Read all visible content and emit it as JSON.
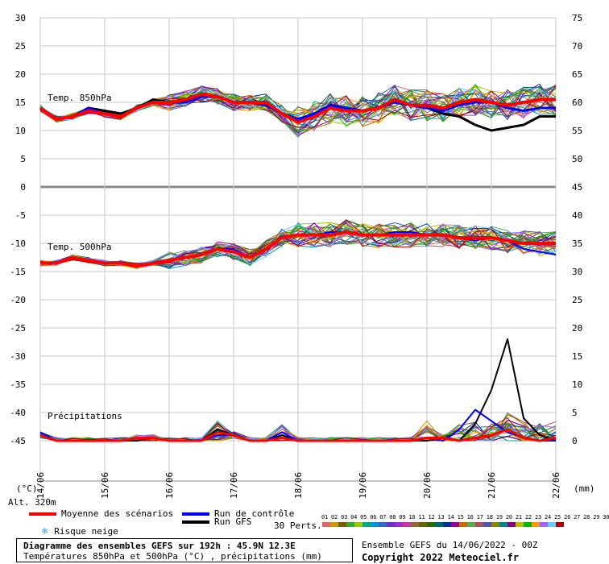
{
  "chart_data": {
    "type": "line",
    "x_dates": [
      "15/06",
      "16/06",
      "17/06",
      "18/06",
      "19/06",
      "20/06",
      "21/06",
      "22/06"
    ],
    "x_start": "14/06",
    "left_axis_ticks": [
      30,
      25,
      20,
      15,
      10,
      5,
      0,
      -5,
      -10,
      -15,
      -20,
      -25,
      -30,
      -35,
      -40,
      -45
    ],
    "right_axis_ticks": [
      75,
      70,
      65,
      60,
      55,
      50,
      45,
      40,
      35,
      30,
      25,
      20,
      15,
      10,
      5,
      0
    ],
    "left_unit": "(°C)",
    "right_unit": "(mm)",
    "panels": {
      "t850": {
        "label": "Temp. 850hPa",
        "mean": [
          14,
          12,
          12.5,
          13.5,
          13,
          12.5,
          14,
          15,
          15,
          15.5,
          16.5,
          16,
          15,
          15,
          15,
          13,
          11.5,
          12.5,
          14,
          13.5,
          13.5,
          14,
          15.5,
          14.5,
          14.5,
          14,
          15,
          15.5,
          15,
          14.5,
          15,
          15.5,
          15.5
        ],
        "control": [
          14,
          12,
          12.5,
          14,
          13,
          12.5,
          14,
          15,
          15,
          15,
          16,
          16,
          15,
          15,
          14.5,
          13,
          12,
          13,
          14.5,
          14,
          13.5,
          14,
          15,
          14.5,
          14,
          13.5,
          14.5,
          15,
          15,
          14,
          13.5,
          14,
          14
        ],
        "gfs": [
          14,
          12,
          12.5,
          14,
          13.5,
          13,
          14,
          15.5,
          15,
          15,
          16,
          16,
          15,
          15,
          14.5,
          13,
          12,
          13,
          14,
          14,
          13.5,
          14,
          15,
          14.5,
          14,
          13,
          12.5,
          11,
          10,
          10.5,
          11,
          12.5,
          12.5
        ]
      },
      "t500": {
        "label": "Temp. 500hPa",
        "mean": [
          -13.5,
          -13.5,
          -12.5,
          -13,
          -13.5,
          -13.5,
          -14,
          -13.5,
          -13,
          -12.5,
          -12,
          -11,
          -11.5,
          -12.5,
          -11,
          -9,
          -8.5,
          -8.5,
          -8.5,
          -8,
          -8.5,
          -8.5,
          -8.5,
          -8.5,
          -8.5,
          -8.5,
          -9,
          -9,
          -9,
          -9.5,
          -10,
          -10,
          -10
        ],
        "control": [
          -13.5,
          -13.5,
          -12.5,
          -13,
          -13.5,
          -13.5,
          -14,
          -13.5,
          -13,
          -12.5,
          -12,
          -11,
          -11,
          -12.5,
          -11,
          -9,
          -8.5,
          -8.5,
          -8,
          -8,
          -8.5,
          -8.5,
          -8,
          -8,
          -8.5,
          -8.5,
          -9,
          -9.5,
          -9,
          -9.5,
          -11,
          -11.5,
          -12
        ]
      },
      "precip": {
        "label": "Précipitations",
        "mean": [
          1,
          0,
          0,
          0,
          0,
          0,
          0.5,
          0.5,
          0,
          0,
          0,
          1.5,
          1,
          0,
          0,
          0.5,
          0,
          0,
          0,
          0,
          0,
          0,
          0,
          0,
          0.5,
          0.5,
          0,
          0.5,
          1,
          2,
          0.5,
          0,
          0.5
        ],
        "control": [
          1.5,
          0,
          0,
          0,
          0,
          0,
          0.5,
          0.5,
          0,
          0,
          0,
          1,
          1,
          0,
          0,
          1.5,
          0,
          0,
          0,
          0,
          0,
          0,
          0,
          0,
          0.5,
          0,
          2,
          5.5,
          3.5,
          1.5,
          0.5,
          0,
          0
        ],
        "gfs": [
          1,
          0,
          0,
          0,
          0,
          0,
          0,
          0.5,
          0,
          0,
          0,
          2,
          1,
          0,
          0,
          1,
          0,
          0,
          0,
          0,
          0,
          0,
          0,
          0,
          0,
          0.5,
          0,
          3,
          9,
          18,
          4,
          1,
          0
        ]
      }
    }
  },
  "altitude": "Alt. 320m",
  "legend": {
    "mean_label": "Moyenne des scénarios",
    "control_label": "Run de contrôle",
    "gfs_label": "Run GFS",
    "snow_label": "Risque neige",
    "perts_label": "30 Perts.",
    "pert_numbers": "01 02 03 04 05 06 07 08 09 10 11 12 13 14 15 16 17 18 19 20 21 22 23 24 25 26 27 28 29 30",
    "colors": {
      "mean": "#ff0000",
      "control": "#0000ff",
      "gfs": "#000000",
      "snow": "#3399ff"
    }
  },
  "title_box": {
    "line1": "Diagramme des ensembles GEFS sur 192h : 45.9N 12.3E",
    "line2": "Températures 850hPa et 500hPa (°C) , précipitations (mm)"
  },
  "ens_info": "Ensemble GEFS du 14/06/2022 - 00Z",
  "copyright": "Copyright 2022 Meteociel.fr"
}
